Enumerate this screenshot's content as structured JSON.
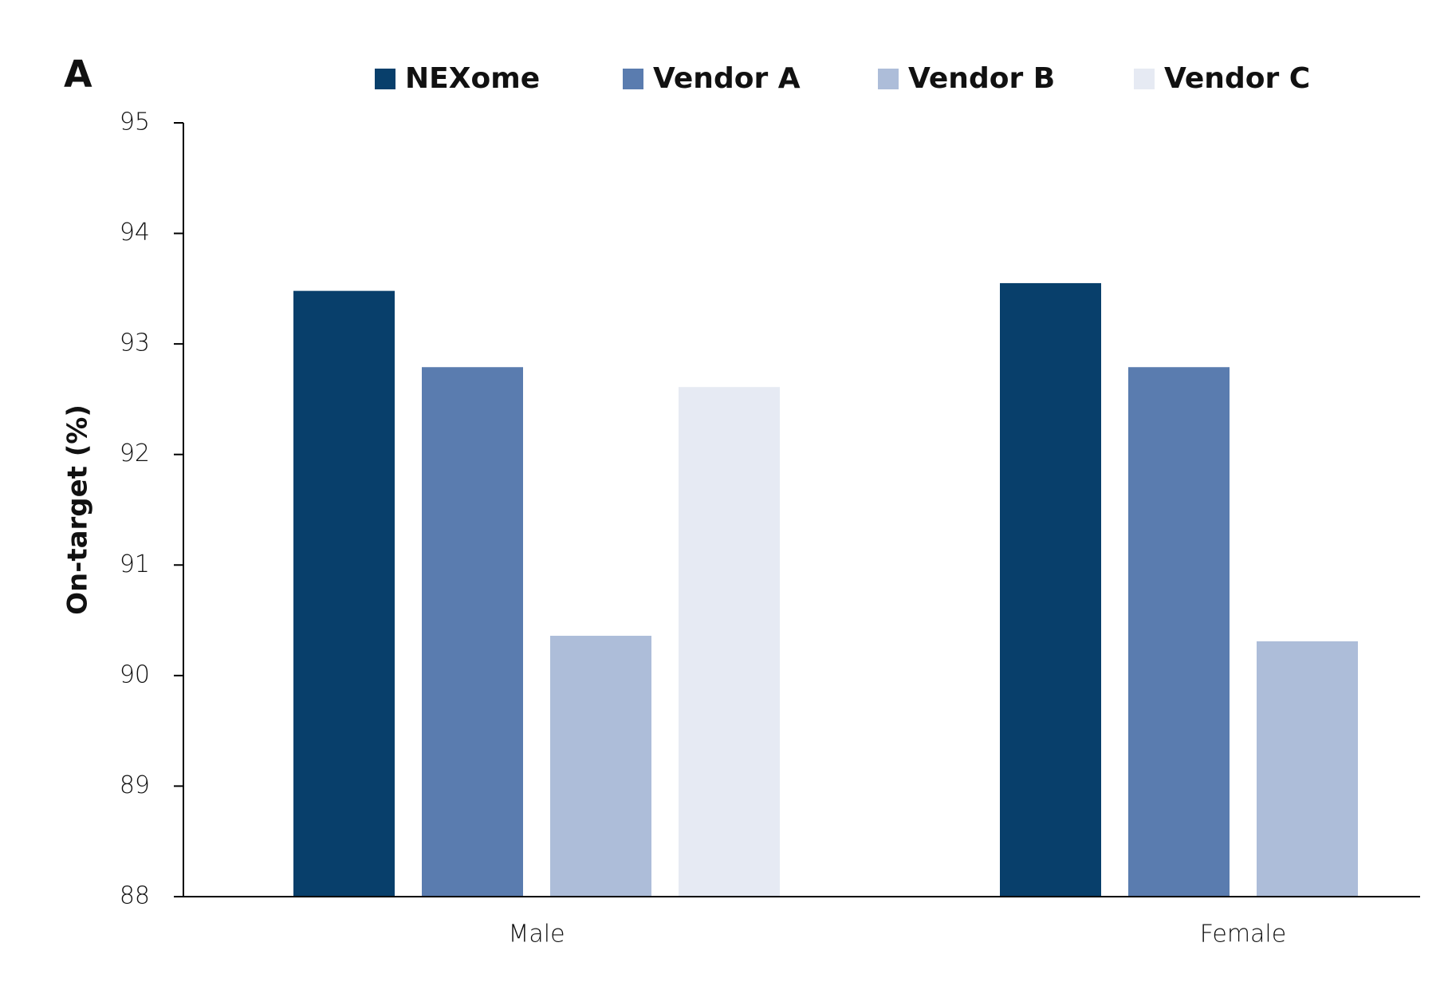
{
  "chart_data": {
    "type": "bar",
    "panel_label": "A",
    "y_label": "On-target (%)",
    "categories": [
      "Male",
      "Female"
    ],
    "series": [
      {
        "name": "NEXome",
        "color": "#083f6b",
        "values": [
          93.48,
          93.55
        ]
      },
      {
        "name": "Vendor A",
        "color": "#5a7caf",
        "values": [
          92.79,
          92.79
        ]
      },
      {
        "name": "Vendor B",
        "color": "#adbdd9",
        "values": [
          90.36,
          90.31
        ]
      },
      {
        "name": "Vendor C",
        "color": "#e6eaf3",
        "values": [
          92.61,
          null
        ]
      }
    ],
    "ylim": [
      88,
      95
    ],
    "yticks": [
      88,
      89,
      90,
      91,
      92,
      93,
      94,
      95
    ],
    "grid": false,
    "legend": "top"
  }
}
